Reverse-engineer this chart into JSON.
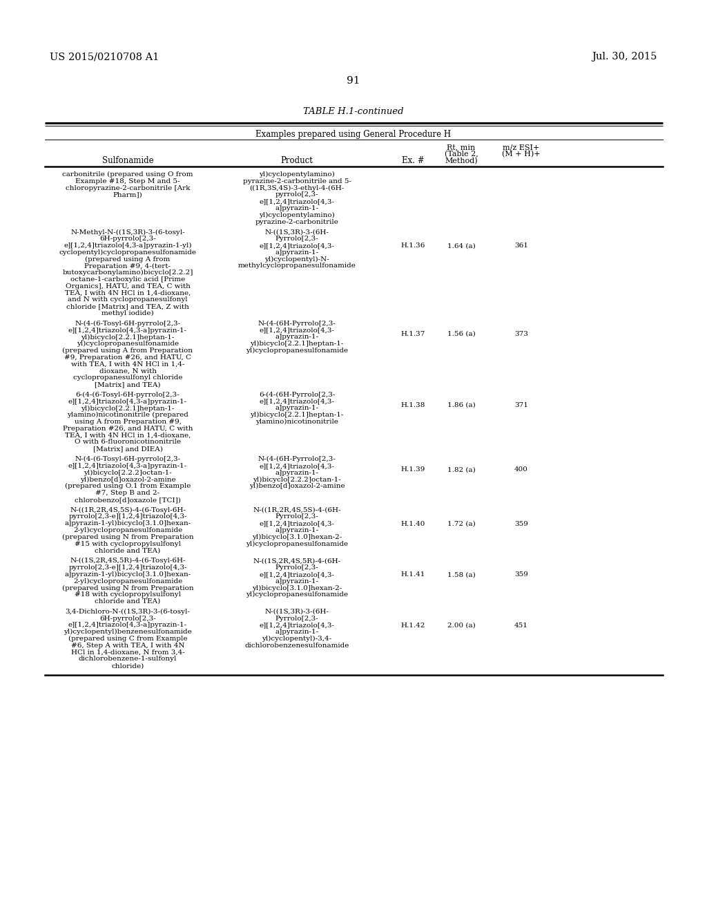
{
  "header_left": "US 2015/0210708 A1",
  "header_right": "Jul. 30, 2015",
  "page_number": "91",
  "table_title": "TABLE H.1-continued",
  "table_subtitle": "Examples prepared using General Procedure H",
  "col1_header": "Sulfonamide",
  "col2_header": "Product",
  "col3_header": "Ex. #",
  "col4_header_lines": [
    "Rt, min",
    "(Table 2,",
    "Method)"
  ],
  "col5_header_lines": [
    "m/z ESI+",
    "(M + H)+"
  ],
  "background_color": "#ffffff",
  "text_color": "#000000",
  "rows": [
    {
      "sulfonamide": "carbonitrile (prepared using O from\nExample #18, Step M and 5-\nchloropyrazine-2-carbonitrile [Ark\nPharm])",
      "product": "yl)cyclopentylamino)\npyrazine-2-carbonitrile and 5-\n((1R,3S,4S)-3-ethyl-4-(6H-\npyrrolo[2,3-\ne][1,2,4]triazolo[4,3-\na]pyrazin-1-\nyl)cyclopentylamino)\npyrazine-2-carbonitrile",
      "ex_num": "",
      "rt": "",
      "mz": ""
    },
    {
      "sulfonamide": "N-Methyl-N-((1S,3R)-3-(6-tosyl-\n6H-pyrrolo[2,3-\ne][1,2,4]triazolo[4,3-a]pyrazin-1-yl)\ncyclopentyl)cyclopropanesulfonamide\n(prepared using A from\nPreparation #9, 4-(tert-\nbutoxycarbonylamino)bicyclo[2.2.2]\noctane-1-carboxylic acid [Prime\nOrganics], HATU, and TEA, C with\nTEA, I with 4N HCl in 1,4-dioxane,\nand N with cyclopropanesulfonyl\nchloride [Matrix] and TEA, Z with\nmethyl iodide)",
      "product": "N-((1S,3R)-3-(6H-\nPyrrolo[2,3-\ne][1,2,4]triazolo[4,3-\na]pyrazin-1-\nyl)cyclopentyl)-N-\nmethylcyclopropanesulfonamide",
      "ex_num": "H.1.36",
      "rt": "1.64 (a)",
      "mz": "361"
    },
    {
      "sulfonamide": "N-(4-(6-Tosyl-6H-pyrrolo[2,3-\ne][1,2,4]triazolo[4,3-a]pyrazin-1-\nyl)bicyclo[2.2.1]heptan-1-\nyl)cyclopropanesulfonamide\n(prepared using A from Preparation\n#9, Preparation #26, and HATU, C\nwith TEA, I with 4N HCl in 1,4-\ndioxane, N with\ncyclopropanesulfonyl chloride\n[Matrix] and TEA)",
      "product": "N-(4-(6H-Pyrrolo[2,3-\ne][1,2,4]triazolo[4,3-\na]pyrazin-1-\nyl)bicyclo[2.2.1]heptan-1-\nyl)cyclopropanesulfonamide",
      "ex_num": "H.1.37",
      "rt": "1.56 (a)",
      "mz": "373"
    },
    {
      "sulfonamide": "6-(4-(6-Tosyl-6H-pyrrolo[2,3-\ne][1,2,4]triazolo[4,3-a]pyrazin-1-\nyl)bicyclo[2.2.1]heptan-1-\nylamino)nicotinonitrile (prepared\nusing A from Preparation #9,\nPreparation #26, and HATU, C with\nTEA, I with 4N HCl in 1,4-dioxane,\nO with 6-fluoronicotinonitrile\n[Matrix] and DIEA)",
      "product": "6-(4-(6H-Pyrrolo[2,3-\ne][1,2,4]triazolo[4,3-\na]pyrazin-1-\nyl)bicyclo[2.2.1]heptan-1-\nylamino)nicotinonitrile",
      "ex_num": "H.1.38",
      "rt": "1.86 (a)",
      "mz": "371"
    },
    {
      "sulfonamide": "N-(4-(6-Tosyl-6H-pyrrolo[2,3-\ne][1,2,4]triazolo[4,3-a]pyrazin-1-\nyl)bicyclo[2.2.2]octan-1-\nyl)benzo[d]oxazol-2-amine\n(prepared using O.1 from Example\n#7, Step B and 2-\nchlorobenzo[d]oxazole [TCI])",
      "product": "N-(4-(6H-Pyrrolo[2,3-\ne][1,2,4]triazolo[4,3-\na]pyrazin-1-\nyl)bicyclo[2.2.2]octan-1-\nyl)benzo[d]oxazol-2-amine",
      "ex_num": "H.1.39",
      "rt": "1.82 (a)",
      "mz": "400"
    },
    {
      "sulfonamide": "N-((1R,2R,4S,5S)-4-(6-Tosyl-6H-\npyrrolo[2,3-e][1,2,4]triazolo[4,3-\na]pyrazin-1-yl)bicyclo[3.1.0]hexan-\n2-yl)cyclopropanesulfonamide\n(prepared using N from Preparation\n#15 with cyclopropylsulfonyl\nchloride and TEA)",
      "product": "N-((1R,2R,4S,5S)-4-(6H-\nPyrrolo[2,3-\ne][1,2,4]triazolo[4,3-\na]pyrazin-1-\nyl)bicyclo[3.1.0]hexan-2-\nyl)cyclopropanesulfonamide",
      "ex_num": "H.1.40",
      "rt": "1.72 (a)",
      "mz": "359"
    },
    {
      "sulfonamide": "N-((1S,2R,4S,5R)-4-(6-Tosyl-6H-\npyrrolo[2,3-e][1,2,4]triazolo[4,3-\na]pyrazin-1-yl)bicyclo[3.1.0]hexan-\n2-yl)cyclopropanesulfonamide\n(prepared using N from Preparation\n#18 with cyclopropylsulfonyl\nchloride and TEA)",
      "product": "N-((1S,2R,4S,5R)-4-(6H-\nPyrrolo[2,3-\ne][1,2,4]triazolo[4,3-\na]pyrazin-1-\nyl)bicyclo[3.1.0]hexan-2-\nyl)cyclopropanesulfonamide",
      "ex_num": "H.1.41",
      "rt": "1.58 (a)",
      "mz": "359"
    },
    {
      "sulfonamide": "3,4-Dichloro-N-((1S,3R)-3-(6-tosyl-\n6H-pyrrolo[2,3-\ne][1,2,4]triazolo[4,3-a]pyrazin-1-\nyl)cyclopentyl)benzenesulfonamide\n(prepared using C from Example\n#6, Step A with TEA, I with 4N\nHCl in 1,4-dioxane, N from 3,4-\ndichlorobenzene-1-sulfonyl\nchloride)",
      "product": "N-((1S,3R)-3-(6H-\nPyrrolo[2,3-\ne][1,2,4]triazolo[4,3-\na]pyrazin-1-\nyl)cyclopentyl)-3,4-\ndichlorobenzenesulfonamide",
      "ex_num": "H.1.42",
      "rt": "2.00 (a)",
      "mz": "451"
    }
  ]
}
